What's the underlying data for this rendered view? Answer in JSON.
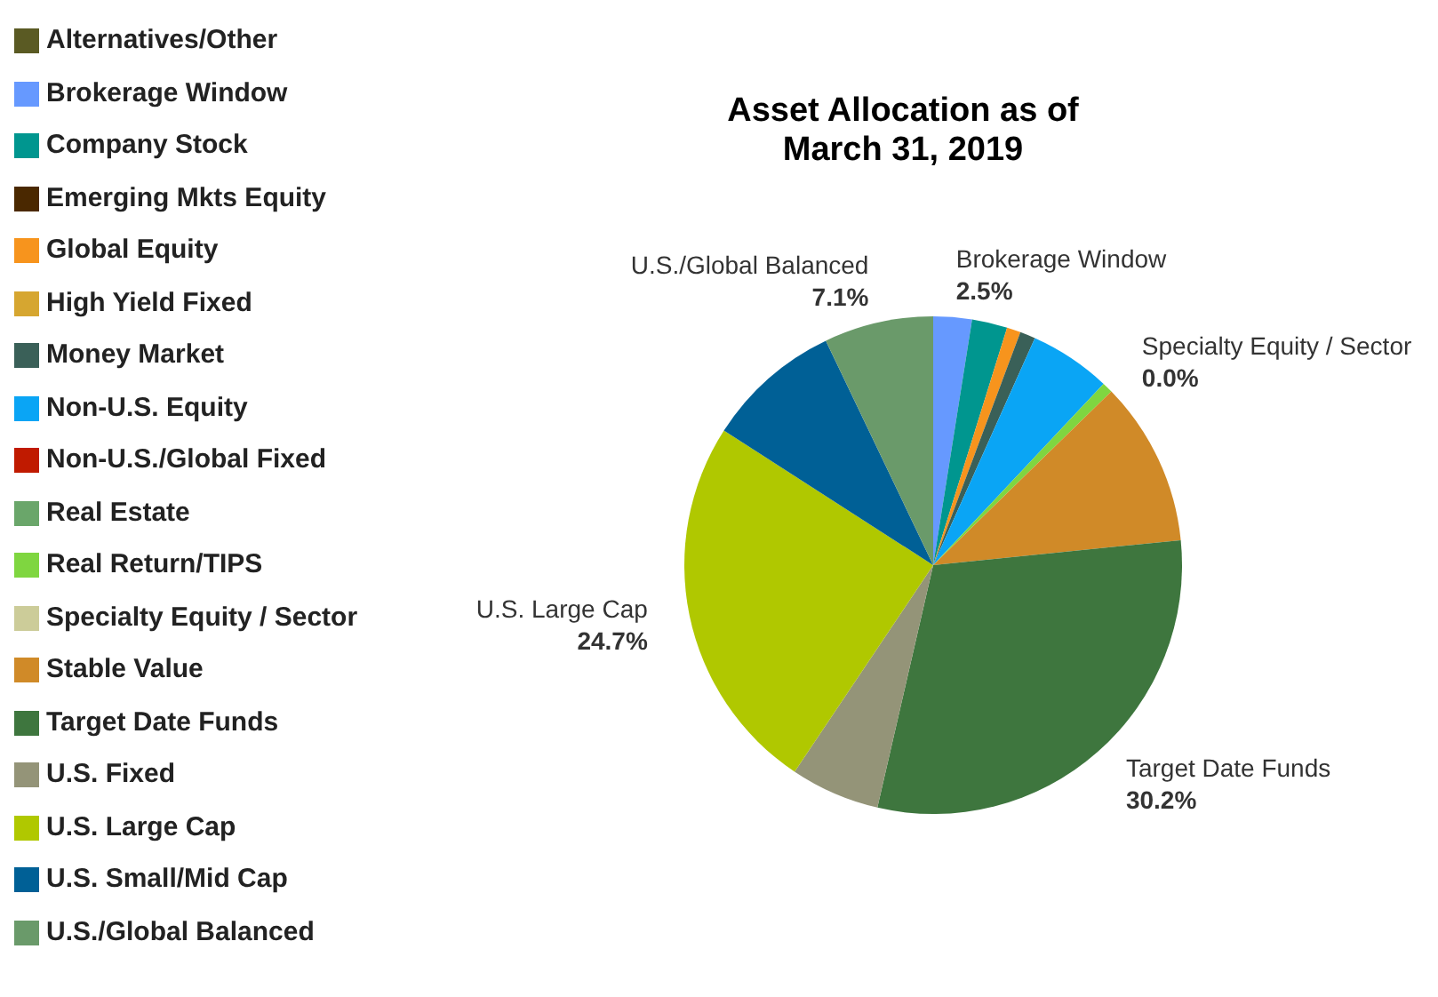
{
  "chart_data": {
    "type": "pie",
    "title": "Asset Allocation as of March 31, 2019",
    "categories": [
      "Alternatives/Other",
      "Brokerage Window",
      "Company Stock",
      "Emerging Mkts Equity",
      "Global Equity",
      "High Yield Fixed",
      "Money Market",
      "Non-U.S. Equity",
      "Non-U.S./Global Fixed",
      "Real Estate",
      "Real Return/TIPS",
      "Specialty Equity / Sector",
      "Stable Value",
      "Target Date Funds",
      "U.S. Fixed",
      "U.S. Large Cap",
      "U.S. Small/Mid Cap",
      "U.S./Global Balanced"
    ],
    "values": [
      0,
      2.5,
      2.3,
      0,
      0.9,
      0,
      1.0,
      5.3,
      0,
      0,
      0.7,
      0.0,
      10.7,
      30.2,
      5.8,
      24.7,
      8.8,
      7.1
    ],
    "value_labels": [
      null,
      "2.5%",
      null,
      null,
      null,
      null,
      null,
      null,
      null,
      null,
      null,
      "0.0%",
      null,
      "30.2%",
      null,
      "24.7%",
      null,
      "7.1%"
    ],
    "colors": [
      "#5a5a23",
      "#6699ff",
      "#00968f",
      "#4a2800",
      "#f7941d",
      "#d6a630",
      "#3a6058",
      "#0aa5f5",
      "#c01a00",
      "#6aa66a",
      "#7fd640",
      "#cccc99",
      "#d08a28",
      "#3e763e",
      "#949478",
      "#b0c800",
      "#006096",
      "#6a9a6a"
    ],
    "legend": "left"
  }
}
